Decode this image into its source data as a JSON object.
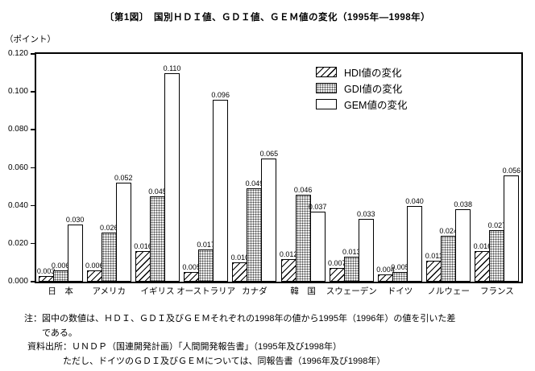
{
  "title": "〔第1図〕　国別ＨＤＩ値、ＧＤＩ値、ＧＥＭ値の変化（1995年―1998年）",
  "axis_unit": "（ポイント）",
  "legend": {
    "items": [
      {
        "label": "HDI値の変化",
        "pattern": "hatch"
      },
      {
        "label": "GDI値の変化",
        "pattern": "dots"
      },
      {
        "label": "GEM値の変化",
        "pattern": "plain"
      }
    ]
  },
  "notes": {
    "line1": "注：図中の数値は、ＨＤＩ、ＧＤＩ及びＧＥＭそれぞれの1998年の値から1995年（1996年）の値を引いた差",
    "line2": "である。",
    "line3": "資料出所：ＵＮＤＰ（国連開発計画）「人間開発報告書」（1995年及び1998年）",
    "line4": "ただし、ドイツのＧＤＩ及びＧＥＭについては、同報告書（1996年及び1998年）"
  },
  "chart_data": {
    "type": "bar",
    "title": "国別ＨＤＩ値、ＧＤＩ値、ＧＥＭ値の変化（1995年―1998年）",
    "categories": [
      "日　本",
      "アメリカ",
      "イギリス",
      "オーストラリア",
      "カナダ",
      "韓　国",
      "スウェーデン",
      "ドイツ",
      "ノルウェー",
      "フランス"
    ],
    "series": [
      {
        "name": "HDI値の変化",
        "pattern": "hatch",
        "values": [
          0.003,
          0.006,
          0.016,
          0.005,
          0.01,
          0.012,
          0.007,
          0.004,
          0.011,
          0.016
        ]
      },
      {
        "name": "GDI値の変化",
        "pattern": "dots",
        "values": [
          0.006,
          0.026,
          0.045,
          0.017,
          0.049,
          0.046,
          0.013,
          0.005,
          0.024,
          0.027
        ]
      },
      {
        "name": "GEM値の変化",
        "pattern": "plain",
        "values": [
          0.03,
          0.052,
          0.11,
          0.096,
          0.065,
          0.037,
          0.033,
          0.04,
          0.038,
          0.056
        ]
      }
    ],
    "xlabel": "",
    "ylabel": "（ポイント）",
    "ylim": [
      0,
      0.12
    ],
    "yticks": [
      "0.000",
      "0.020",
      "0.040",
      "0.060",
      "0.080",
      "0.100",
      "0.120"
    ],
    "value_labels": true,
    "grid": false,
    "legend_position": "upper-right-inside",
    "colors": {
      "ink": "#000000",
      "paper": "#ffffff"
    }
  }
}
